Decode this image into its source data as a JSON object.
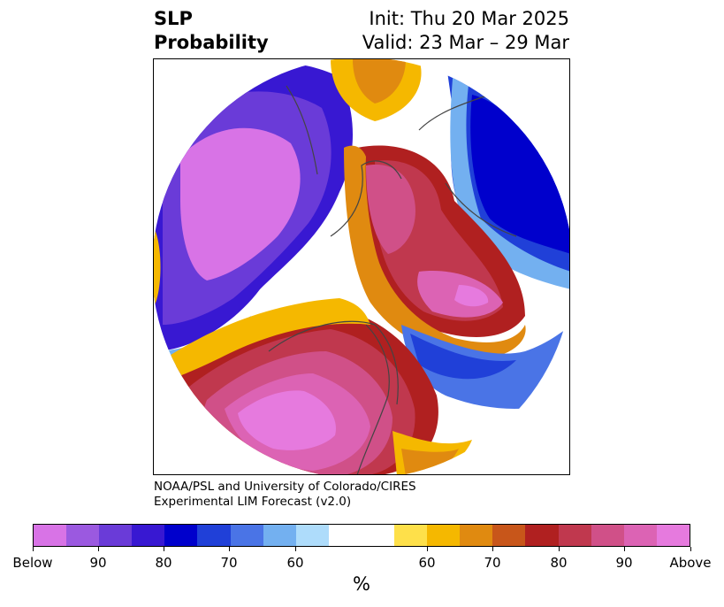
{
  "title": {
    "left_line1": "SLP",
    "left_line2": "Probability",
    "right_line1": "Init: Thu 20 Mar 2025",
    "right_line2": "Valid: 23 Mar – 29 Mar"
  },
  "credit": {
    "line1": "NOAA/PSL and University of Colorado/CIRES",
    "line2": "Experimental LIM Forecast (v2.0)"
  },
  "colorbar": {
    "labels": [
      "Below",
      "90",
      "80",
      "70",
      "60",
      "60",
      "70",
      "80",
      "90",
      "Above"
    ],
    "units": "%",
    "colors": [
      "#d873e6",
      "#9b59e0",
      "#6a3bd8",
      "#3818d2",
      "#0000cc",
      "#2040d8",
      "#4a74e6",
      "#73b0f0",
      "#aedcfb",
      "#ffffff",
      "#fee04a",
      "#f5b800",
      "#e08a10",
      "#c8561a",
      "#b02020",
      "#c0384e",
      "#d05088",
      "#dc63b4",
      "#e67ade"
    ]
  },
  "map": {
    "projection": "north-polar-stereographic",
    "regions": [
      "north-pacific-below-center",
      "alaska-below",
      "north-america-above",
      "atlantic-above",
      "europe-below",
      "siberia-above"
    ]
  }
}
